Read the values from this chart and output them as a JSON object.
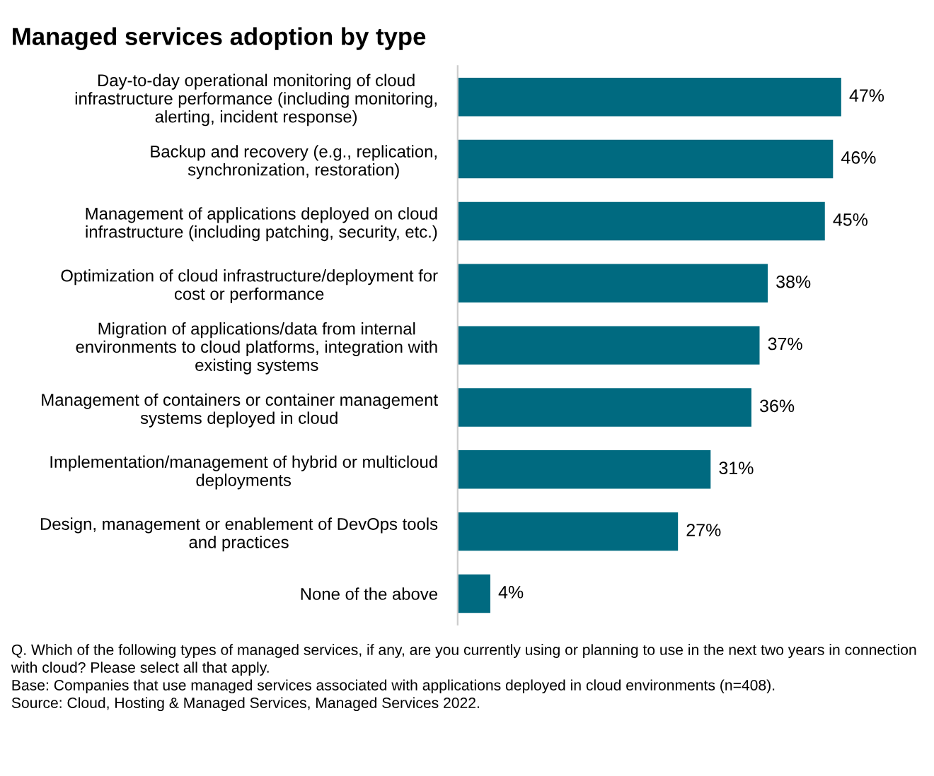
{
  "chart_data": {
    "type": "bar",
    "orientation": "horizontal",
    "title": "Managed services adoption by type",
    "categories": [
      "Day-to-day operational monitoring of cloud\ninfrastructure performance (including monitoring,\nalerting, incident response)",
      "Backup and recovery (e.g., replication,\nsynchronization, restoration)",
      "Management of applications deployed on cloud\ninfrastructure (including patching, security, etc.)",
      "Optimization of cloud infrastructure/deployment for\ncost or performance",
      "Migration of applications/data from internal\nenvironments to cloud platforms, integration with\nexisting systems",
      "Management of containers or container management\nsystems deployed in cloud",
      "Implementation/management of hybrid or multicloud\ndeployments",
      "Design, management or enablement of DevOps tools\nand practices",
      "None of the above"
    ],
    "values": [
      47,
      46,
      45,
      38,
      37,
      36,
      31,
      27,
      4
    ],
    "value_labels": [
      "47%",
      "46%",
      "45%",
      "38%",
      "37%",
      "36%",
      "31%",
      "27%",
      "4%"
    ],
    "color": "#006a80",
    "xlim": [
      0,
      47.5
    ],
    "tick_labels": "y",
    "grid": false,
    "legend": false,
    "annotations": [
      "Q. Which of the following types of managed services, if any, are you currently using or planning to use in the next two years in connection with cloud? Please select all that apply.\nBase: Companies that use managed services associated with applications deployed in cloud environments (n=408).\nSource: Cloud, Hosting & Managed Services, Managed Services 2022."
    ]
  }
}
